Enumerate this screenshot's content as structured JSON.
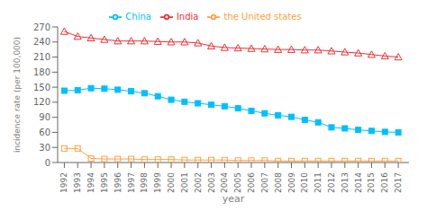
{
  "chart_data": {
    "type": "line",
    "xlabel": "year",
    "ylabel": "incidence rate (per 100,000)",
    "x": [
      1992,
      1993,
      1994,
      1995,
      1996,
      1997,
      1998,
      1999,
      2000,
      2001,
      2002,
      2003,
      2004,
      2005,
      2006,
      2007,
      2008,
      2009,
      2010,
      2011,
      2012,
      2013,
      2014,
      2015,
      2016,
      2017
    ],
    "series": [
      {
        "name": "China",
        "color": "#00BFFF",
        "marker": "square",
        "values": [
          143,
          144,
          148,
          147,
          145,
          142,
          138,
          132,
          125,
          121,
          118,
          115,
          112,
          108,
          103,
          98,
          94,
          91,
          85,
          80,
          70,
          68,
          65,
          63,
          61,
          60
        ]
      },
      {
        "name": "India",
        "color": "#F03030",
        "marker": "triangle-open",
        "values": [
          261,
          251,
          248,
          245,
          242,
          242,
          242,
          241,
          240,
          240,
          238,
          232,
          229,
          228,
          227,
          226,
          225,
          225,
          224,
          224,
          222,
          220,
          218,
          215,
          212,
          210
        ]
      },
      {
        "name": "the United states",
        "color": "#FFA040",
        "marker": "square-open",
        "values": [
          28,
          28,
          8,
          7,
          7,
          7,
          6,
          6,
          6,
          5,
          5,
          5,
          5,
          4,
          4,
          4,
          3,
          3,
          3,
          3,
          3,
          3,
          3,
          3,
          3,
          3
        ]
      }
    ],
    "xlim": [
      1991.5,
      2017.8
    ],
    "xticks": [
      1992,
      1993,
      1994,
      1995,
      1996,
      1997,
      1998,
      1999,
      2000,
      2001,
      2002,
      2003,
      2004,
      2005,
      2006,
      2007,
      2008,
      2009,
      2010,
      2011,
      2012,
      2013,
      2014,
      2015,
      2016,
      2017
    ],
    "ylim": [
      0,
      270
    ],
    "yticks": [
      0,
      30,
      60,
      90,
      120,
      150,
      180,
      210,
      240,
      270
    ],
    "grid": false,
    "legend": "upper center"
  }
}
